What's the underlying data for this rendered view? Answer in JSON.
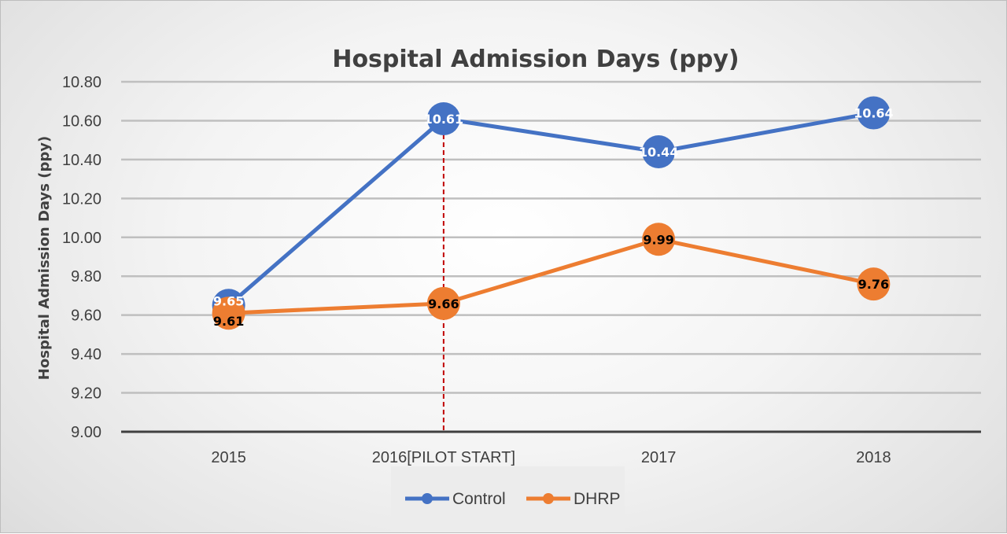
{
  "chart_data": {
    "type": "line",
    "title": "Hospital Admission Days (ppy)",
    "xlabel": "",
    "ylabel": "Hospital Admission Days (ppy)",
    "categories": [
      "2015",
      "2016[PILOT START]",
      "2017",
      "2018"
    ],
    "ylim": [
      9.0,
      10.8
    ],
    "yticks": [
      "9.00",
      "9.20",
      "9.40",
      "9.60",
      "9.80",
      "10.00",
      "10.20",
      "10.40",
      "10.60",
      "10.80"
    ],
    "grid": true,
    "legend": "bottom",
    "series": [
      {
        "name": "Control",
        "color": "#4472c4",
        "label_color": "#ffffff",
        "values": [
          9.65,
          10.61,
          10.44,
          10.64
        ],
        "labels": [
          "9.65",
          "10.61",
          "10.44",
          "10.64"
        ]
      },
      {
        "name": "DHRP",
        "color": "#ed7d31",
        "label_color": "#000000",
        "values": [
          9.61,
          9.66,
          9.99,
          9.76
        ],
        "labels": [
          "9.61",
          "9.66",
          "9.99",
          "9.76"
        ]
      }
    ],
    "annotations": [
      {
        "type": "vertical-dashed-line",
        "category": "2016[PILOT START]",
        "color": "#c00000"
      }
    ]
  }
}
